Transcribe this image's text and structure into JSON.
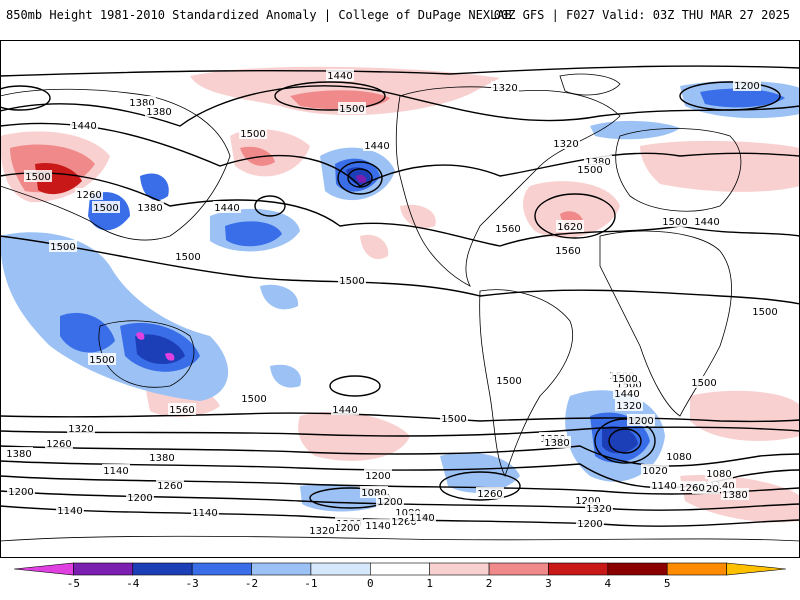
{
  "header": {
    "title": "850mb Height 1981-2010 Standardized Anomaly | College of DuPage NEXLAB",
    "run_info": "00Z GFS | F027 Valid: 03Z THU MAR 27 2025"
  },
  "colorbar": {
    "ticks": [
      "-5",
      "-4",
      "-3",
      "-2",
      "-1",
      "0",
      "1",
      "2",
      "3",
      "4",
      "5"
    ],
    "colors": [
      "#e040e0",
      "#7a1fb0",
      "#1c3fb8",
      "#3a6ee8",
      "#9cc2f5",
      "#d6e8fb",
      "#ffffff",
      "#f9d0d0",
      "#f08a8a",
      "#c81818",
      "#8a0000",
      "#ff8c00",
      "#ffc000"
    ]
  },
  "map": {
    "ocean_color": "#ffffff",
    "coastline_color": "#000000",
    "contour_color": "#000000",
    "contour_labels": [
      "1440",
      "1380",
      "1380",
      "1440",
      "1500",
      "1500",
      "1320",
      "1320",
      "1380",
      "1200",
      "1500",
      "1440",
      "1500",
      "1380",
      "1500",
      "1260",
      "1500",
      "1500",
      "1500",
      "1440",
      "1560",
      "1620",
      "1560",
      "1500",
      "1440",
      "1500",
      "1500",
      "1500",
      "1500",
      "1560",
      "1500",
      "1440",
      "1500",
      "1500",
      "1500",
      "1440",
      "1380",
      "1320",
      "1200",
      "1080",
      "1020",
      "1140",
      "1080",
      "1140",
      "1320",
      "1380",
      "1380",
      "1260",
      "1320",
      "1380",
      "1200",
      "1140",
      "1260",
      "1140",
      "1200",
      "1080",
      "1260",
      "1200",
      "1140",
      "1200",
      "1080",
      "1140",
      "1200",
      "1320",
      "1260",
      "1200",
      "1140",
      "1380",
      "1320",
      "1260",
      "1200",
      "1140",
      "1200",
      "1500"
    ]
  }
}
